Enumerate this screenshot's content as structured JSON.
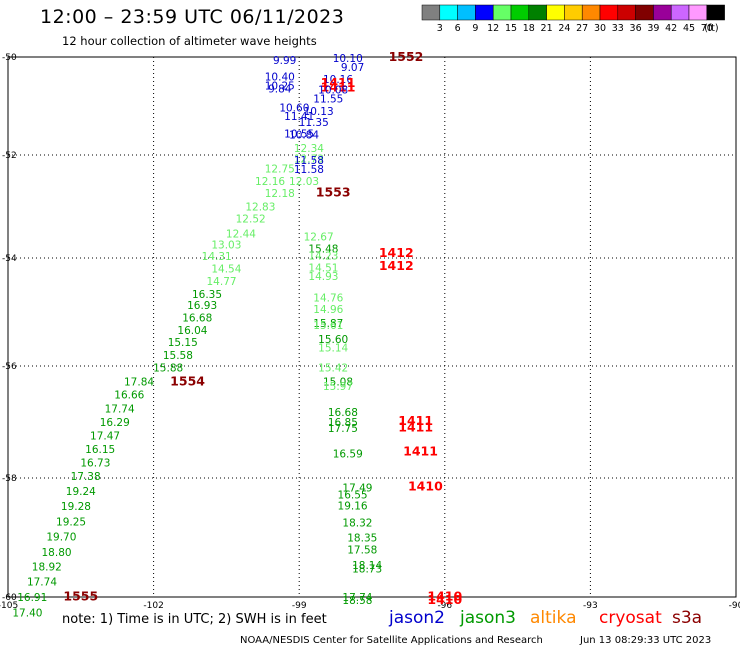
{
  "title": "12:00 – 23:59 UTC 06/11/2023",
  "subtitle": "12 hour collection of altimeter wave heights",
  "colorbar": {
    "labels": [
      "3",
      "6",
      "9",
      "12",
      "15",
      "18",
      "21",
      "24",
      "27",
      "30",
      "33",
      "36",
      "39",
      "42",
      "45",
      "70"
    ],
    "unit": "(ft)",
    "colors": [
      "#808080",
      "#00ffff",
      "#00bfff",
      "#0000ff",
      "#66ff66",
      "#00cc00",
      "#008000",
      "#ffff00",
      "#ffcc00",
      "#ff8800",
      "#ff0000",
      "#cc0000",
      "#800000",
      "#990099",
      "#cc66ff",
      "#ff99ff",
      "#000000"
    ]
  },
  "note": "note: 1) Time is in UTC; 2) SWH is in feet",
  "satellites": {
    "jason2": "jason2",
    "jason3": "jason3",
    "altika": "altika",
    "cryosat": "cryosat",
    "s3a": "s3a"
  },
  "satellite_colors": {
    "jason2": "#0000cc",
    "jason3": "#009900",
    "altika": "#ff8800",
    "cryosat": "#ff0000",
    "s3a": "#8b0000"
  },
  "credit": "NOAA/NESDIS Center for Satellite Applications and Research",
  "timestamp": "Jun 13 08:29:33 UTC 2023",
  "chart_data": {
    "type": "scatter",
    "title": "12:00 – 23:59 UTC 06/11/2023",
    "xlim": [
      -105,
      -90
    ],
    "ylim": [
      -60.1,
      -50
    ],
    "x_ticks": [
      -105,
      -102,
      -99,
      -96,
      -93,
      -90
    ],
    "y_ticks": [
      -50,
      -52,
      -54,
      -56,
      -58,
      -60
    ],
    "grid": true,
    "colors": {
      "blue": "#0000cc",
      "dgreen": "#009900",
      "lgreen": "#66ee66",
      "red": "#ff0000",
      "dred": "#8b0000"
    },
    "labels": [
      {
        "t": "10.10",
        "x": -98.0,
        "y": -50.02,
        "c": "blue"
      },
      {
        "t": "1552",
        "x": -96.8,
        "y": -50.0,
        "c": "dred",
        "big": true
      },
      {
        "t": "9.99",
        "x": -99.3,
        "y": -50.06,
        "c": "blue"
      },
      {
        "t": "9.07",
        "x": -97.9,
        "y": -50.2,
        "c": "blue"
      },
      {
        "t": "10.40",
        "x": -99.4,
        "y": -50.4,
        "c": "blue"
      },
      {
        "t": "10.16",
        "x": -98.2,
        "y": -50.45,
        "c": "blue"
      },
      {
        "t": "1411",
        "x": -98.2,
        "y": -50.53,
        "c": "red",
        "big": true
      },
      {
        "t": "10.25",
        "x": -99.4,
        "y": -50.58,
        "c": "blue"
      },
      {
        "t": "1411",
        "x": -98.2,
        "y": -50.62,
        "c": "red",
        "big": true
      },
      {
        "t": "9.84",
        "x": -99.4,
        "y": -50.64,
        "c": "blue"
      },
      {
        "t": "10.08",
        "x": -98.3,
        "y": -50.66,
        "c": "blue"
      },
      {
        "t": "11.55",
        "x": -98.4,
        "y": -50.85,
        "c": "blue"
      },
      {
        "t": "10.60",
        "x": -99.1,
        "y": -51.03,
        "c": "blue"
      },
      {
        "t": "10.13",
        "x": -98.6,
        "y": -51.1,
        "c": "blue"
      },
      {
        "t": "11.41",
        "x": -99.0,
        "y": -51.2,
        "c": "blue"
      },
      {
        "t": "11.35",
        "x": -98.7,
        "y": -51.33,
        "c": "blue"
      },
      {
        "t": "10.55",
        "x": -99.0,
        "y": -51.56,
        "c": "blue"
      },
      {
        "t": "10.84",
        "x": -98.9,
        "y": -51.58,
        "c": "blue"
      },
      {
        "t": "12.34",
        "x": -98.8,
        "y": -51.86,
        "c": "lgreen"
      },
      {
        "t": "12.73",
        "x": -98.8,
        "y": -52.07,
        "c": "lgreen"
      },
      {
        "t": "11.58",
        "x": -98.8,
        "y": -52.1,
        "c": "blue"
      },
      {
        "t": "11.58",
        "x": -98.8,
        "y": -52.27,
        "c": "blue"
      },
      {
        "t": "12.75",
        "x": -99.4,
        "y": -52.26,
        "c": "lgreen"
      },
      {
        "t": "12.03",
        "x": -98.9,
        "y": -52.5,
        "c": "lgreen"
      },
      {
        "t": "12.16",
        "x": -99.6,
        "y": -52.5,
        "c": "lgreen"
      },
      {
        "t": "12.18",
        "x": -99.4,
        "y": -52.74,
        "c": "lgreen"
      },
      {
        "t": "1553",
        "x": -98.3,
        "y": -52.73,
        "c": "dred",
        "big": true
      },
      {
        "t": "12.83",
        "x": -99.8,
        "y": -53.0,
        "c": "lgreen"
      },
      {
        "t": "12.52",
        "x": -100.0,
        "y": -53.23,
        "c": "lgreen"
      },
      {
        "t": "12.44",
        "x": -100.2,
        "y": -53.52,
        "c": "lgreen"
      },
      {
        "t": "12.67",
        "x": -98.6,
        "y": -53.58,
        "c": "lgreen"
      },
      {
        "t": "13.03",
        "x": -100.5,
        "y": -53.74,
        "c": "lgreen"
      },
      {
        "t": "15.48",
        "x": -98.5,
        "y": -53.82,
        "c": "dgreen"
      },
      {
        "t": "1412",
        "x": -97.0,
        "y": -53.9,
        "c": "red",
        "big": true
      },
      {
        "t": "14.31",
        "x": -100.7,
        "y": -53.96,
        "c": "lgreen"
      },
      {
        "t": "14.23",
        "x": -98.5,
        "y": -53.95,
        "c": "lgreen"
      },
      {
        "t": "14.54",
        "x": -100.5,
        "y": -54.19,
        "c": "lgreen"
      },
      {
        "t": "14.51",
        "x": -98.5,
        "y": -54.18,
        "c": "lgreen"
      },
      {
        "t": "1412",
        "x": -97.0,
        "y": -54.15,
        "c": "red",
        "big": true
      },
      {
        "t": "14.93",
        "x": -98.5,
        "y": -54.33,
        "c": "lgreen"
      },
      {
        "t": "14.77",
        "x": -100.6,
        "y": -54.43,
        "c": "lgreen"
      },
      {
        "t": "16.35",
        "x": -100.9,
        "y": -54.67,
        "c": "dgreen"
      },
      {
        "t": "14.76",
        "x": -98.4,
        "y": -54.73,
        "c": "lgreen"
      },
      {
        "t": "16.93",
        "x": -101.0,
        "y": -54.87,
        "c": "dgreen"
      },
      {
        "t": "14.96",
        "x": -98.4,
        "y": -54.94,
        "c": "lgreen"
      },
      {
        "t": "16.68",
        "x": -101.1,
        "y": -55.1,
        "c": "dgreen"
      },
      {
        "t": "15.87",
        "x": -98.4,
        "y": -55.2,
        "c": "dgreen"
      },
      {
        "t": "16.04",
        "x": -101.2,
        "y": -55.33,
        "c": "dgreen"
      },
      {
        "t": "15.61",
        "x": -98.4,
        "y": -55.24,
        "c": "lgreen"
      },
      {
        "t": "15.15",
        "x": -101.4,
        "y": -55.56,
        "c": "dgreen"
      },
      {
        "t": "15.60",
        "x": -98.3,
        "y": -55.5,
        "c": "dgreen"
      },
      {
        "t": "15.58",
        "x": -101.5,
        "y": -55.8,
        "c": "dgreen"
      },
      {
        "t": "15.14",
        "x": -98.3,
        "y": -55.66,
        "c": "lgreen"
      },
      {
        "t": "15.88",
        "x": -101.7,
        "y": -56.03,
        "c": "dgreen"
      },
      {
        "t": "15.42",
        "x": -98.3,
        "y": -56.03,
        "c": "lgreen"
      },
      {
        "t": "17.84",
        "x": -102.3,
        "y": -56.28,
        "c": "dgreen"
      },
      {
        "t": "1554",
        "x": -101.3,
        "y": -56.28,
        "c": "dred",
        "big": true
      },
      {
        "t": "15.08",
        "x": -98.2,
        "y": -56.28,
        "c": "dgreen"
      },
      {
        "t": "16.66",
        "x": -102.5,
        "y": -56.51,
        "c": "dgreen"
      },
      {
        "t": "15.97",
        "x": -98.2,
        "y": -56.36,
        "c": "lgreen"
      },
      {
        "t": "17.74",
        "x": -102.7,
        "y": -56.76,
        "c": "dgreen"
      },
      {
        "t": "16.68",
        "x": -98.1,
        "y": -56.82,
        "c": "dgreen"
      },
      {
        "t": "16.29",
        "x": -102.8,
        "y": -57.0,
        "c": "dgreen"
      },
      {
        "t": "16.85",
        "x": -98.1,
        "y": -57.0,
        "c": "dgreen"
      },
      {
        "t": "1411",
        "x": -96.6,
        "y": -56.98,
        "c": "red",
        "big": true
      },
      {
        "t": "17.47",
        "x": -103.0,
        "y": -57.24,
        "c": "dgreen"
      },
      {
        "t": "17.75",
        "x": -98.1,
        "y": -57.11,
        "c": "dgreen"
      },
      {
        "t": "1411",
        "x": -96.6,
        "y": -57.1,
        "c": "red",
        "big": true
      },
      {
        "t": "16.15",
        "x": -103.1,
        "y": -57.48,
        "c": "dgreen"
      },
      {
        "t": "16.59",
        "x": -98.0,
        "y": -57.56,
        "c": "dgreen"
      },
      {
        "t": "1411",
        "x": -96.5,
        "y": -57.53,
        "c": "red",
        "big": true
      },
      {
        "t": "16.73",
        "x": -103.2,
        "y": -57.72,
        "c": "dgreen"
      },
      {
        "t": "17.38",
        "x": -103.4,
        "y": -57.96,
        "c": "dgreen"
      },
      {
        "t": "17.49",
        "x": -97.8,
        "y": -58.16,
        "c": "dgreen"
      },
      {
        "t": "1410",
        "x": -96.4,
        "y": -58.14,
        "c": "red",
        "big": true
      },
      {
        "t": "19.24",
        "x": -103.5,
        "y": -58.22,
        "c": "dgreen"
      },
      {
        "t": "16.55",
        "x": -97.9,
        "y": -58.28,
        "c": "dgreen"
      },
      {
        "t": "19.28",
        "x": -103.6,
        "y": -58.47,
        "c": "dgreen"
      },
      {
        "t": "19.16",
        "x": -97.9,
        "y": -58.46,
        "c": "dgreen"
      },
      {
        "t": "19.25",
        "x": -103.7,
        "y": -58.73,
        "c": "dgreen"
      },
      {
        "t": "18.32",
        "x": -97.8,
        "y": -58.75,
        "c": "dgreen"
      },
      {
        "t": "19.70",
        "x": -103.9,
        "y": -58.98,
        "c": "dgreen"
      },
      {
        "t": "18.35",
        "x": -97.7,
        "y": -59.0,
        "c": "dgreen"
      },
      {
        "t": "18.80",
        "x": -104.0,
        "y": -59.24,
        "c": "dgreen"
      },
      {
        "t": "17.58",
        "x": -97.7,
        "y": -59.2,
        "c": "dgreen"
      },
      {
        "t": "18.92",
        "x": -104.2,
        "y": -59.49,
        "c": "dgreen"
      },
      {
        "t": "18.14",
        "x": -97.6,
        "y": -59.46,
        "c": "dgreen"
      },
      {
        "t": "18.73",
        "x": -97.6,
        "y": -59.52,
        "c": "dgreen"
      },
      {
        "t": "17.74",
        "x": -104.3,
        "y": -59.74,
        "c": "dgreen"
      },
      {
        "t": "16.91",
        "x": -104.5,
        "y": -60.0,
        "c": "dgreen"
      },
      {
        "t": "1555",
        "x": -103.5,
        "y": -59.99,
        "c": "dred",
        "big": true
      },
      {
        "t": "17.74",
        "x": -97.8,
        "y": -60.0,
        "c": "dgreen"
      },
      {
        "t": "18.58",
        "x": -97.8,
        "y": -60.05,
        "c": "dgreen"
      },
      {
        "t": "1410",
        "x": -96.0,
        "y": -59.99,
        "c": "red",
        "big": true
      },
      {
        "t": "1410",
        "x": -96.0,
        "y": -60.05,
        "c": "red",
        "big": true
      },
      {
        "t": "17.40",
        "x": -104.6,
        "y": -60.26,
        "c": "dgreen"
      }
    ]
  }
}
